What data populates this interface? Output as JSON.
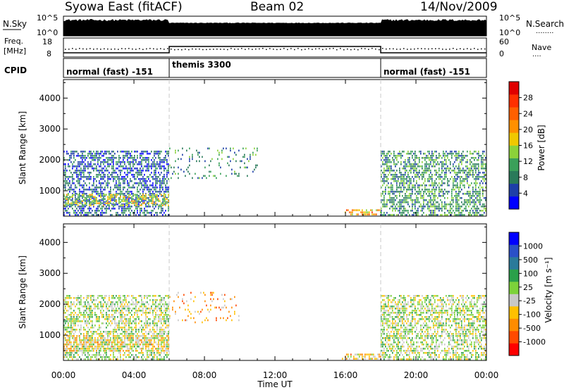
{
  "header": {
    "radar_title": "Syowa East (fitACF)",
    "beam": "Beam 02",
    "date": "14/Nov/2009"
  },
  "noise_panel": {
    "left_label": "N.Sky",
    "left_ticks": [
      "10^5",
      "10^0"
    ],
    "right_ticks": [
      "10^5",
      "10^0"
    ],
    "right_label": "N.Search",
    "right_legend": "........",
    "sky_line_color": "#000000"
  },
  "freq_panel": {
    "left_label_1": "Freq.",
    "left_label_2": "[MHz]",
    "left_ticks": [
      "18",
      "8"
    ],
    "right_ticks": [
      "60",
      "0"
    ],
    "right_label": "Nave",
    "right_legend": "...."
  },
  "cpid_panel": {
    "label": "CPID",
    "segments": [
      {
        "start_hour": 0,
        "end_hour": 6,
        "name": "normal (fast) -151"
      },
      {
        "start_hour": 6,
        "end_hour": 18,
        "name": "themis 3300"
      },
      {
        "start_hour": 18,
        "end_hour": 24,
        "name": "normal (fast) -151"
      }
    ]
  },
  "x_axis": {
    "label": "Time UT",
    "ticks": [
      "00:00",
      "04:00",
      "08:00",
      "12:00",
      "16:00",
      "20:00",
      "00:00"
    ],
    "range_hours": [
      0,
      24
    ]
  },
  "mode_change_hours": [
    6,
    18
  ],
  "chart_data": [
    {
      "type": "heatmap",
      "name": "power",
      "ylabel": "Slant Range [km]",
      "yticks": [
        "1000",
        "2000",
        "3000",
        "4000"
      ],
      "ylim": [
        180,
        4600
      ],
      "colorbar": {
        "label": "Power [dB]",
        "ticks": [
          "4",
          "8",
          "12",
          "16",
          "20",
          "24",
          "28"
        ],
        "range": [
          0,
          32
        ],
        "colors": [
          "#0000ff",
          "#1e3fa8",
          "#2a7a5a",
          "#3aa05a",
          "#8cd23a",
          "#f0c800",
          "#ff9000",
          "#ff6000",
          "#ff3000",
          "#e00000"
        ]
      },
      "regions": [
        {
          "x": [
            0,
            6
          ],
          "y": [
            200,
            2300
          ],
          "value": 6,
          "fill": "dense"
        },
        {
          "x": [
            0,
            6
          ],
          "y": [
            550,
            900
          ],
          "value": 15,
          "fill": "dense"
        },
        {
          "x": [
            6,
            11
          ],
          "y": [
            1400,
            2400
          ],
          "value": 9,
          "fill": "patchy"
        },
        {
          "x": [
            15.8,
            18
          ],
          "y": [
            260,
            400
          ],
          "value": 20,
          "fill": "dense"
        },
        {
          "x": [
            18,
            24
          ],
          "y": [
            200,
            2300
          ],
          "value": 10,
          "fill": "dense"
        }
      ]
    },
    {
      "type": "heatmap",
      "name": "velocity",
      "ylabel": "Slant Range [km]",
      "yticks": [
        "1000",
        "2000",
        "3000",
        "4000"
      ],
      "ylim": [
        180,
        4600
      ],
      "colorbar": {
        "label": "Velocity [m s⁻¹]",
        "ticks": [
          "1000",
          "500",
          "100",
          "25",
          "-25",
          "-100",
          "-500",
          "-1000"
        ],
        "range": [
          -1200,
          1200
        ],
        "colors": [
          "#ff0000",
          "#ff4a00",
          "#ff8c00",
          "#ffc000",
          "#c8c8c8",
          "#7cd23a",
          "#2aa04a",
          "#2a7a9a",
          "#2a50c8",
          "#0000ff"
        ]
      },
      "regions": [
        {
          "x": [
            0,
            6
          ],
          "y": [
            200,
            2300
          ],
          "value": 0,
          "fill": "dense"
        },
        {
          "x": [
            0,
            6
          ],
          "y": [
            500,
            1000
          ],
          "value": -300,
          "fill": "dense"
        },
        {
          "x": [
            6,
            10
          ],
          "y": [
            1400,
            2400
          ],
          "value": -500,
          "fill": "patchy"
        },
        {
          "x": [
            15.8,
            18
          ],
          "y": [
            260,
            400
          ],
          "value": -300,
          "fill": "dense"
        },
        {
          "x": [
            18,
            24
          ],
          "y": [
            200,
            2300
          ],
          "value": 0,
          "fill": "dense"
        }
      ]
    }
  ]
}
